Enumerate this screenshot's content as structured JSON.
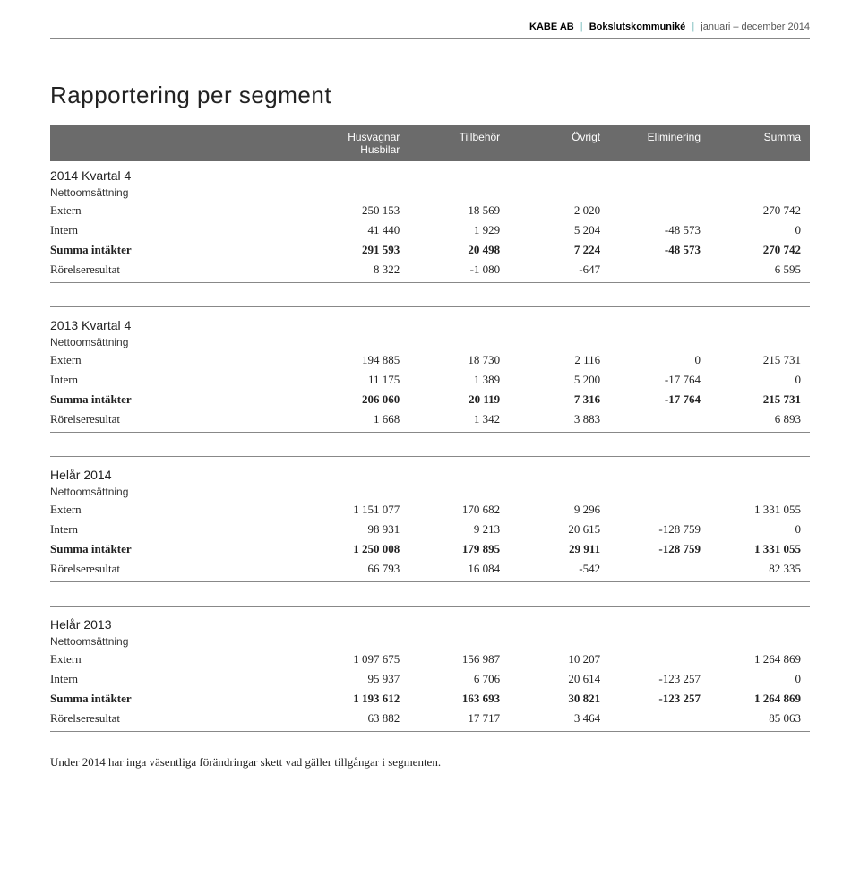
{
  "header": {
    "company": "KABE AB",
    "sep": "|",
    "doctype": "Bokslutskommuniké",
    "period": "januari – december 2014"
  },
  "title": "Rapportering per segment",
  "columns": [
    "",
    "Husvagnar\nHusbilar",
    "Tillbehör",
    "Övrigt",
    "Eliminering",
    "Summa"
  ],
  "labels": {
    "nettoomsattning": "Nettoomsättning",
    "extern": "Extern",
    "intern": "Intern",
    "summa_intakter": "Summa intäkter",
    "rorelseresultat": "Rörelseresultat"
  },
  "sections": {
    "q4_2014": {
      "title": "2014 Kvartal 4",
      "extern": [
        "250 153",
        "18 569",
        "2 020",
        "",
        "270 742"
      ],
      "intern": [
        "41 440",
        "1 929",
        "5 204",
        "-48 573",
        "0"
      ],
      "summa": [
        "291 593",
        "20 498",
        "7 224",
        "-48 573",
        "270 742"
      ],
      "rorelse": [
        "8 322",
        "-1 080",
        "-647",
        "",
        "6 595"
      ]
    },
    "q4_2013": {
      "title": "2013 Kvartal 4",
      "extern": [
        "194 885",
        "18 730",
        "2 116",
        "0",
        "215 731"
      ],
      "intern": [
        "11 175",
        "1 389",
        "5 200",
        "-17 764",
        "0"
      ],
      "summa": [
        "206 060",
        "20 119",
        "7 316",
        "-17 764",
        "215 731"
      ],
      "rorelse": [
        "1 668",
        "1 342",
        "3 883",
        "",
        "6 893"
      ]
    },
    "helar_2014": {
      "title": "Helår 2014",
      "extern": [
        "1 151 077",
        "170 682",
        "9 296",
        "",
        "1 331 055"
      ],
      "intern": [
        "98 931",
        "9 213",
        "20 615",
        "-128 759",
        "0"
      ],
      "summa": [
        "1 250 008",
        "179 895",
        "29 911",
        "-128 759",
        "1 331 055"
      ],
      "rorelse": [
        "66 793",
        "16 084",
        "-542",
        "",
        "82 335"
      ]
    },
    "helar_2013": {
      "title": "Helår 2013",
      "extern": [
        "1 097 675",
        "156 987",
        "10 207",
        "",
        "1 264 869"
      ],
      "intern": [
        "95 937",
        "6 706",
        "20 614",
        "-123 257",
        "0"
      ],
      "summa": [
        "1 193 612",
        "163 693",
        "30 821",
        "-123 257",
        "1 264 869"
      ],
      "rorelse": [
        "63 882",
        "17 717",
        "3 464",
        "",
        "85 063"
      ]
    }
  },
  "footnote": "Under 2014 har inga väsentliga förändringar skett vad gäller tillgångar i segmenten."
}
